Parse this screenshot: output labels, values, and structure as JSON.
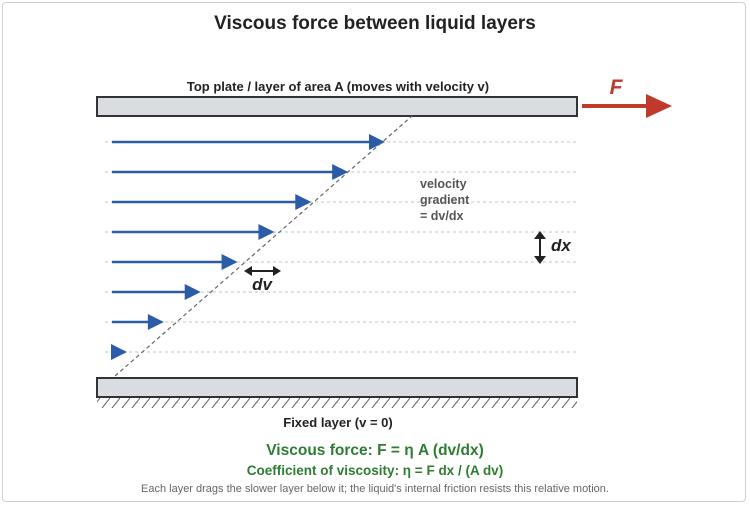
{
  "title": "Viscous force between liquid layers",
  "top_plate_label": "Top plate / layer of area A (moves with velocity v)",
  "fixed_layer_label": "Fixed layer (v = 0)",
  "force_symbol": "F",
  "gradient_label_lines": [
    "velocity",
    "gradient",
    "= dv/dx"
  ],
  "dx_label": "dx",
  "dv_label": "dv",
  "viscous_force_formula": "Viscous force: F = η A (dv/dx)",
  "coefficient_formula": "Coefficient of viscosity: η = F dx / (A dv)",
  "footnote": "Each layer drags the slower layer below it; the liquid's internal friction resists this relative motion.",
  "velocity_layers_fraction": [
    0.875,
    0.75,
    0.625,
    0.5,
    0.375,
    0.25,
    0.125,
    0.0
  ],
  "colors": {
    "velocity_arrow": "#2a5ca8",
    "force_arrow": "#c0392b",
    "plate_fill": "#d9dce0",
    "plate_stroke": "#333333",
    "formula": "#2e7d32",
    "layer_line": "#b8c4d6"
  }
}
